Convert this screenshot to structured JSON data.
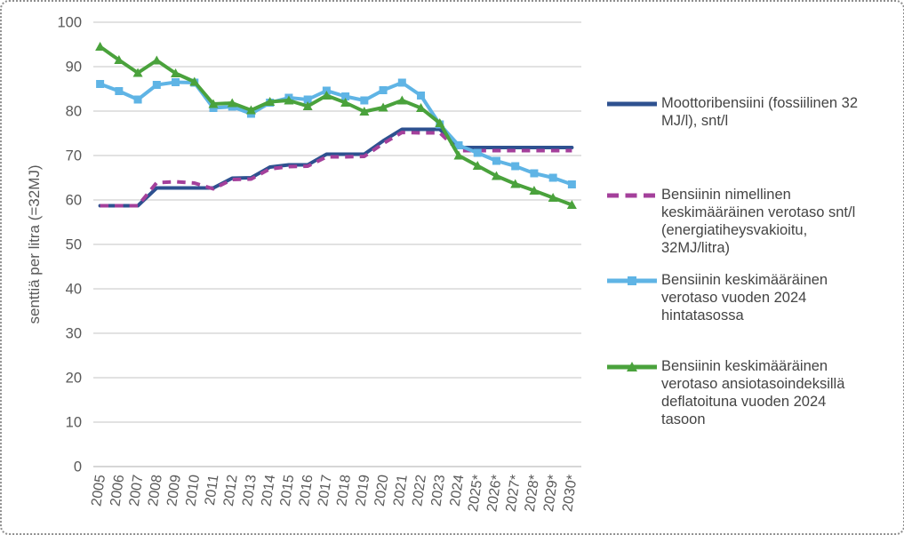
{
  "figure": {
    "background": "#ffffff",
    "border_color": "#8f8f8f",
    "gridline_color": "#d9d9d9",
    "axis_line_color": "#c8c8c8",
    "tick_label_color": "#595959",
    "legend_text_color": "#444444"
  },
  "y_axis": {
    "title": "senttiä per litra (=32MJ)",
    "min": 0,
    "max": 100,
    "tick_step": 10,
    "tick_labels": [
      "0",
      "10",
      "20",
      "30",
      "40",
      "50",
      "60",
      "70",
      "80",
      "90",
      "100"
    ]
  },
  "x_axis": {
    "categories": [
      "2005",
      "2006",
      "2007",
      "2008",
      "2009",
      "2010",
      "2011",
      "2012",
      "2013",
      "2014",
      "2015",
      "2016",
      "2017",
      "2018",
      "2019",
      "2020",
      "2021",
      "2022",
      "2023",
      "2024",
      "2025*",
      "2026*",
      "2027*",
      "2028*",
      "2029*",
      "2030*"
    ]
  },
  "legend": {
    "items": [
      {
        "label": "Moottoribensiini (fossiilinen 32\nMJ/l), snt/l",
        "color": "#2e5190",
        "style": "solid"
      },
      {
        "label": "Bensiinin nimellinen\nkeskimääräinen verotaso snt/l\n(energiatiheysvakioitu,\n32MJ/litra)",
        "color": "#a4409b",
        "style": "dashed"
      },
      {
        "label": "Bensiinin keskimääräinen\nverotaso vuoden 2024\nhintatasossa",
        "color": "#5fb4e5",
        "style": "solid-square"
      },
      {
        "label": "Bensiinin keskimääräinen\nverotaso ansiotasoindeksillä\ndeflatoituna vuoden 2024\ntasoon",
        "color": "#4aa23c",
        "style": "solid-triangle"
      }
    ]
  },
  "chart_data": {
    "type": "line",
    "title": "",
    "xlabel": "",
    "ylabel": "senttiä per litra (=32MJ)",
    "ylim": [
      0,
      100
    ],
    "y_tick_step": 10,
    "grid": true,
    "legend_position": "right",
    "categories": [
      "2005",
      "2006",
      "2007",
      "2008",
      "2009",
      "2010",
      "2011",
      "2012",
      "2013",
      "2014",
      "2015",
      "2016",
      "2017",
      "2018",
      "2019",
      "2020",
      "2021",
      "2022",
      "2023",
      "2024",
      "2025*",
      "2026*",
      "2027*",
      "2028*",
      "2029*",
      "2030*"
    ],
    "series": [
      {
        "name": "Moottoribensiini (fossiilinen 32 MJ/l), snt/l",
        "color": "#2e5190",
        "line_style": "solid",
        "marker": "none",
        "values": [
          58.7,
          58.7,
          58.7,
          62.7,
          62.7,
          62.7,
          62.7,
          64.9,
          65.0,
          67.4,
          67.9,
          67.9,
          70.3,
          70.3,
          70.3,
          73.3,
          75.9,
          75.9,
          75.9,
          71.8,
          71.8,
          71.8,
          71.8,
          71.8,
          71.8,
          71.8
        ]
      },
      {
        "name": "Bensiinin nimellinen keskimääräinen verotaso snt/l (energiatiheysvakioitu, 32MJ/litra)",
        "color": "#a4409b",
        "line_style": "dashed",
        "marker": "none",
        "values": [
          58.7,
          58.7,
          58.7,
          63.9,
          64.1,
          63.8,
          62.5,
          64.6,
          64.7,
          67.0,
          67.5,
          67.6,
          69.7,
          69.7,
          69.8,
          72.7,
          75.2,
          75.1,
          75.1,
          71.1,
          71.1,
          71.1,
          71.1,
          71.1,
          71.1,
          71.1
        ]
      },
      {
        "name": "Bensiinin keskimääräinen verotaso vuoden 2024 hintatasossa",
        "color": "#5fb4e5",
        "line_style": "solid",
        "marker": "square",
        "values": [
          86.1,
          84.5,
          82.6,
          85.9,
          86.5,
          86.4,
          80.7,
          81.0,
          79.4,
          81.9,
          83.0,
          82.6,
          84.6,
          83.3,
          82.4,
          84.7,
          86.4,
          83.5,
          77.0,
          72.3,
          70.6,
          68.8,
          67.6,
          66.0,
          65.0,
          63.5
        ]
      },
      {
        "name": "Bensiinin keskimääräinen verotaso ansiotasoindeksillä deflatoituna vuoden 2024 tasoon",
        "color": "#4aa23c",
        "line_style": "solid",
        "marker": "triangle",
        "values": [
          94.5,
          91.5,
          88.6,
          91.4,
          88.5,
          86.6,
          81.6,
          81.8,
          80.2,
          82.1,
          82.4,
          81.1,
          83.5,
          81.9,
          79.9,
          80.8,
          82.4,
          80.7,
          77.3,
          70.0,
          67.7,
          65.4,
          63.6,
          62.1,
          60.5,
          58.9
        ]
      }
    ]
  }
}
